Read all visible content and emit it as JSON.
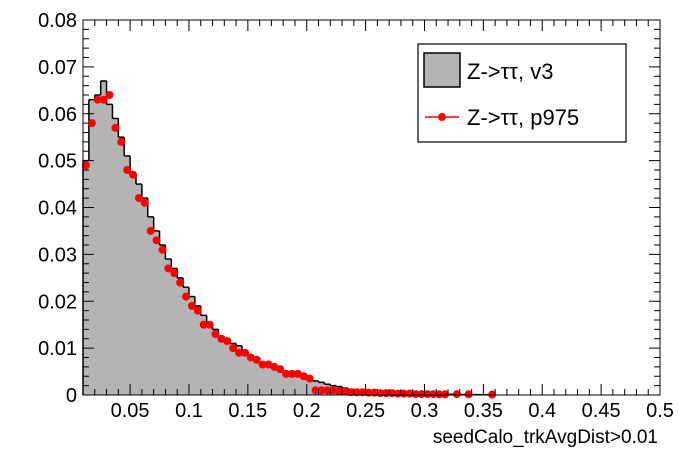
{
  "chart_data": {
    "type": "histogram",
    "title": "",
    "xlabel": "seedCalo_trkAvgDist>0.01",
    "ylabel": "",
    "xlim": [
      0.01,
      0.5
    ],
    "ylim": [
      0,
      0.08
    ],
    "x_ticks": [
      "0.05",
      "0.1",
      "0.15",
      "0.2",
      "0.25",
      "0.3",
      "0.35",
      "0.4",
      "0.45",
      "0.5"
    ],
    "x_tick_values": [
      0.05,
      0.1,
      0.15,
      0.2,
      0.25,
      0.3,
      0.35,
      0.4,
      0.45,
      0.5
    ],
    "y_ticks": [
      "0",
      "0.01",
      "0.02",
      "0.03",
      "0.04",
      "0.05",
      "0.06",
      "0.07",
      "0.08"
    ],
    "y_tick_values": [
      0,
      0.01,
      0.02,
      0.03,
      0.04,
      0.05,
      0.06,
      0.07,
      0.08
    ],
    "bin_width": 0.005,
    "legend": {
      "placement": "top-right",
      "entries": [
        {
          "label": "Z->ττ, v3",
          "style": "filled-histogram"
        },
        {
          "label": "Z->ττ, p975",
          "style": "line-marker"
        }
      ]
    },
    "series": [
      {
        "name": "Z->ττ, v3",
        "kind": "histogram",
        "fill_color": "#b4b4b4",
        "line_color": "#000000",
        "bin_edges_start": 0.01,
        "values": [
          0.05,
          0.063,
          0.064,
          0.067,
          0.062,
          0.059,
          0.055,
          0.051,
          0.047,
          0.045,
          0.042,
          0.038,
          0.035,
          0.032,
          0.029,
          0.027,
          0.025,
          0.023,
          0.021,
          0.019,
          0.017,
          0.0155,
          0.014,
          0.0125,
          0.012,
          0.011,
          0.0105,
          0.0095,
          0.0085,
          0.008,
          0.007,
          0.0065,
          0.006,
          0.0055,
          0.005,
          0.0045,
          0.004,
          0.0037,
          0.0033,
          0.003,
          0.0027,
          0.0023,
          0.002,
          0.0018,
          0.0015,
          0.0012,
          0.001,
          0.0009,
          0.0008,
          0.0007,
          0.0006,
          0.0005,
          0.00045,
          0.0004,
          0.00035,
          0.0003,
          0.00028,
          0.00025,
          0.00022,
          0.0002,
          0.00018,
          0.00016,
          0.00014,
          0.00012,
          0.0001,
          9e-05,
          8e-05,
          7e-05,
          6e-05,
          5e-05
        ]
      },
      {
        "name": "Z->ττ, p975",
        "kind": "line-marker",
        "color": "#ff0000",
        "x": [
          0.0125,
          0.0175,
          0.0225,
          0.0275,
          0.0325,
          0.0375,
          0.0425,
          0.0475,
          0.0525,
          0.0575,
          0.0625,
          0.0675,
          0.0725,
          0.0775,
          0.0825,
          0.0875,
          0.0925,
          0.0975,
          0.1025,
          0.1075,
          0.1125,
          0.1175,
          0.1225,
          0.1275,
          0.1325,
          0.1375,
          0.1425,
          0.1475,
          0.1525,
          0.1575,
          0.1625,
          0.1675,
          0.1725,
          0.1775,
          0.1825,
          0.1875,
          0.1925,
          0.1975,
          0.2025,
          0.2075,
          0.2125,
          0.2175,
          0.2225,
          0.2275,
          0.2325,
          0.2375,
          0.2425,
          0.2475,
          0.2525,
          0.2575,
          0.2625,
          0.2675,
          0.2725,
          0.2775,
          0.2825,
          0.2875,
          0.2925,
          0.2975,
          0.3025,
          0.3075,
          0.3125,
          0.3175,
          0.3275,
          0.3375,
          0.3575
        ],
        "y": [
          0.049,
          0.058,
          0.063,
          0.063,
          0.064,
          0.057,
          0.054,
          0.048,
          0.047,
          0.042,
          0.041,
          0.035,
          0.033,
          0.031,
          0.027,
          0.026,
          0.024,
          0.021,
          0.019,
          0.018,
          0.015,
          0.015,
          0.013,
          0.012,
          0.0115,
          0.01,
          0.009,
          0.009,
          0.008,
          0.0075,
          0.0065,
          0.0065,
          0.006,
          0.0055,
          0.0045,
          0.0045,
          0.0045,
          0.004,
          0.0035,
          0.001,
          0.001,
          0.001,
          0.001,
          0.0008,
          0.0008,
          0.0006,
          0.0006,
          0.0006,
          0.0005,
          0.0005,
          0.0004,
          0.0004,
          0.0004,
          0.0003,
          0.0003,
          0.0003,
          0.0002,
          0.0002,
          0.0002,
          0.0002,
          0.00015,
          0.00015,
          0.0002,
          0.00015,
          0.0001
        ]
      }
    ]
  }
}
